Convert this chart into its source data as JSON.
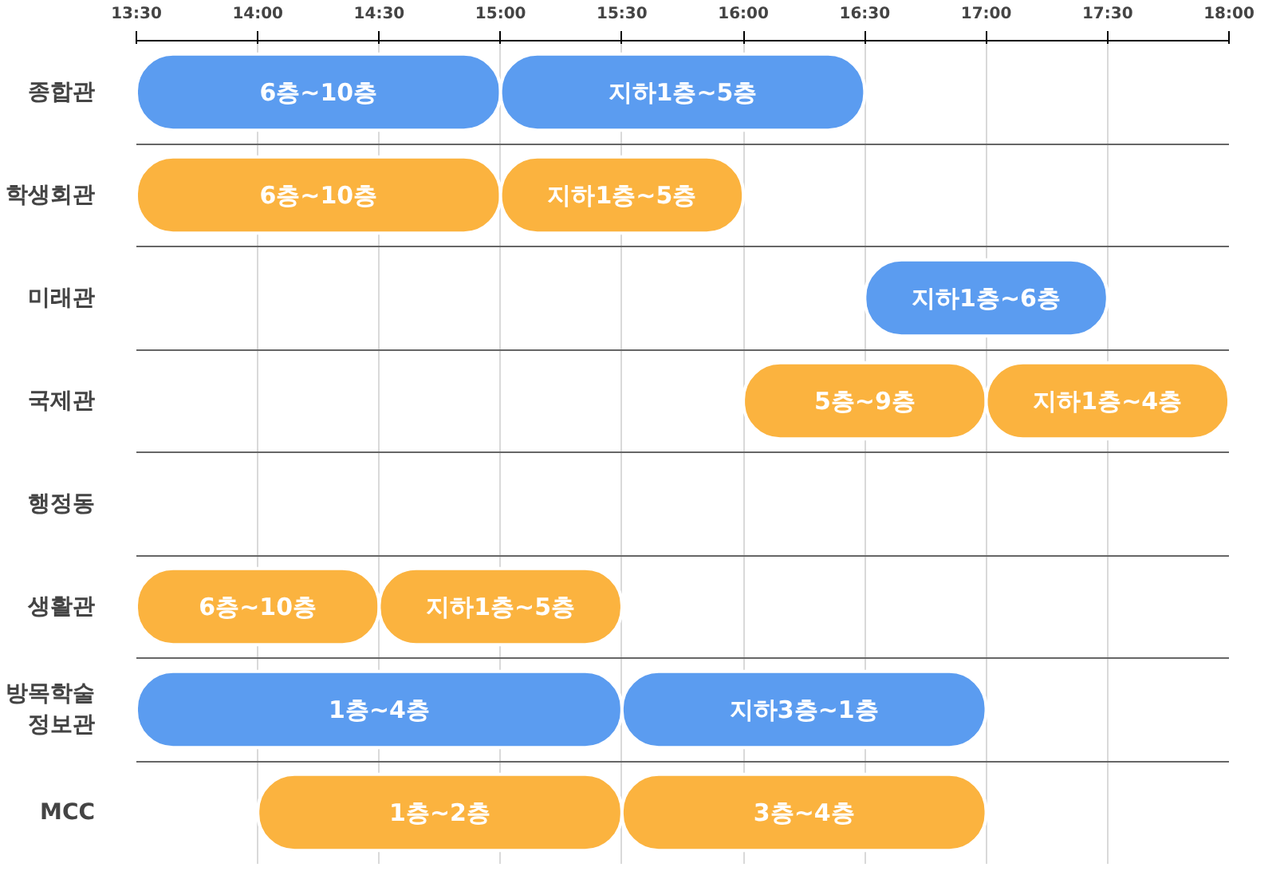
{
  "chart_data": {
    "type": "bar",
    "orientation": "horizontal",
    "categories": [
      "종합관",
      "학생회관",
      "미래관",
      "국제관",
      "행정동",
      "생활관",
      "방목학술\n정보관",
      "MCC"
    ],
    "series": [
      {
        "colors": [
          "#5b9cf0",
          "#fbb33f",
          "#5b9cf0",
          "#fbb33f",
          null,
          "#fbb33f",
          "#5b9cf0",
          "#fbb33f"
        ],
        "base": [
          13.5,
          13.5,
          16.5,
          16.0,
          null,
          13.5,
          13.5,
          14.0
        ],
        "values": [
          1.5,
          1.5,
          1.0,
          1.0,
          null,
          1.0,
          2.0,
          1.5
        ]
      },
      {
        "colors": [
          "#5b9cf0",
          "#fbb33f",
          null,
          "#fbb33f",
          null,
          "#fbb33f",
          "#5b9cf0",
          "#fbb33f"
        ],
        "base": [
          15.0,
          15.0,
          null,
          17.0,
          null,
          14.5,
          15.5,
          15.5
        ],
        "values": [
          1.5,
          1.0,
          null,
          1.0,
          null,
          1.0,
          1.5,
          1.5
        ]
      }
    ],
    "annotations": [
      {
        "text": "6층~10층",
        "x": 14.25,
        "y": "종합관"
      },
      {
        "text": "지하1층~5층",
        "x": 15.75,
        "y": "종합관"
      },
      {
        "text": "6층~10층",
        "x": 14.25,
        "y": "학생회관"
      },
      {
        "text": "지하1층~5층",
        "x": 15.5,
        "y": "학생회관"
      },
      {
        "text": "지하1층~6층",
        "x": 17.0,
        "y": "미래관"
      },
      {
        "text": "5층~9층",
        "x": 16.5,
        "y": "국제관"
      },
      {
        "text": "지하1층~4층",
        "x": 17.5,
        "y": "국제관"
      },
      {
        "text": "6층~10층",
        "x": 14.0,
        "y": "생활관"
      },
      {
        "text": "지하1층~5층",
        "x": 15.0,
        "y": "생활관"
      },
      {
        "text": "1층~4층",
        "x": 14.5,
        "y": "방목학술\n정보관"
      },
      {
        "text": "지하3층~1층",
        "x": 16.25,
        "y": "방목학술\n정보관"
      },
      {
        "text": "1층~2층",
        "x": 14.75,
        "y": "MCC"
      },
      {
        "text": "3층~4층",
        "x": 16.25,
        "y": "MCC"
      }
    ],
    "xlim": [
      13.5,
      18.0
    ],
    "xticks": [
      {
        "value": 13.5,
        "label": "13:30"
      },
      {
        "value": 14.0,
        "label": "14:00"
      },
      {
        "value": 14.5,
        "label": "14:30"
      },
      {
        "value": 15.0,
        "label": "15:00"
      },
      {
        "value": 15.5,
        "label": "15:30"
      },
      {
        "value": 16.0,
        "label": "16:00"
      },
      {
        "value": 16.5,
        "label": "16:30"
      },
      {
        "value": 17.0,
        "label": "17:00"
      },
      {
        "value": 17.5,
        "label": "17:30"
      },
      {
        "value": 18.0,
        "label": "18:00"
      }
    ],
    "grid": true
  }
}
